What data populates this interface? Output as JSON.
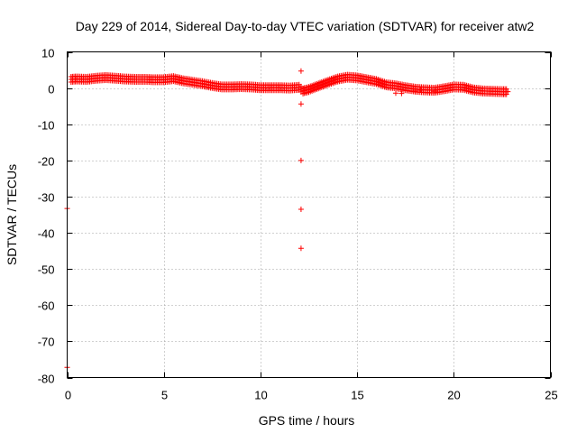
{
  "chart_data": {
    "type": "scatter",
    "title": "Day 229 of 2014, Sidereal Day-to-day VTEC variation (SDTVAR) for receiver atw2",
    "xlabel": "GPS time / hours",
    "ylabel": "SDTVAR / TECUs",
    "xlim": [
      0,
      25
    ],
    "ylim": [
      -80,
      10
    ],
    "x_ticks": [
      0,
      5,
      10,
      15,
      20,
      25
    ],
    "y_ticks": [
      10,
      0,
      -10,
      -20,
      -30,
      -40,
      -50,
      -60,
      -70,
      -80
    ],
    "grid": true,
    "marker": "+",
    "color": "#ff0000",
    "series": [
      {
        "name": "atw2",
        "band": [
          [
            0.2,
            2.4
          ],
          [
            0.5,
            2.5
          ],
          [
            1.0,
            2.4
          ],
          [
            1.5,
            2.7
          ],
          [
            2.0,
            2.9
          ],
          [
            2.5,
            2.7
          ],
          [
            3.0,
            2.5
          ],
          [
            3.5,
            2.4
          ],
          [
            4.0,
            2.4
          ],
          [
            4.5,
            2.3
          ],
          [
            5.0,
            2.3
          ],
          [
            5.5,
            2.6
          ],
          [
            6.0,
            2.0
          ],
          [
            6.5,
            1.6
          ],
          [
            7.0,
            1.2
          ],
          [
            7.5,
            0.7
          ],
          [
            8.0,
            0.3
          ],
          [
            8.5,
            0.3
          ],
          [
            9.0,
            0.4
          ],
          [
            9.5,
            0.3
          ],
          [
            10.0,
            0.1
          ],
          [
            10.5,
            0.1
          ],
          [
            11.0,
            0.1
          ],
          [
            11.5,
            0.0
          ],
          [
            12.0,
            0.2
          ],
          [
            12.2,
            -0.8
          ],
          [
            12.5,
            -0.4
          ],
          [
            13.0,
            0.6
          ],
          [
            13.5,
            1.6
          ],
          [
            14.0,
            2.5
          ],
          [
            14.5,
            3.0
          ],
          [
            15.0,
            2.8
          ],
          [
            15.5,
            2.3
          ],
          [
            16.0,
            1.8
          ],
          [
            16.5,
            0.9
          ],
          [
            17.0,
            0.6
          ],
          [
            17.5,
            0.1
          ],
          [
            18.0,
            -0.3
          ],
          [
            18.5,
            -0.5
          ],
          [
            19.0,
            -0.6
          ],
          [
            19.5,
            -0.2
          ],
          [
            20.0,
            0.3
          ],
          [
            20.5,
            0.2
          ],
          [
            21.0,
            -0.5
          ],
          [
            21.5,
            -0.8
          ],
          [
            22.0,
            -0.9
          ],
          [
            22.5,
            -1.0
          ],
          [
            22.8,
            -1.0
          ]
        ],
        "outliers": [
          [
            0.0,
            -33.3
          ],
          [
            0.0,
            -77.2
          ],
          [
            12.1,
            4.7
          ],
          [
            12.1,
            -4.4
          ],
          [
            12.1,
            -20.0
          ],
          [
            12.1,
            -33.5
          ],
          [
            12.1,
            -44.3
          ],
          [
            17.0,
            -1.4
          ],
          [
            17.3,
            -1.5
          ],
          [
            18.0,
            -0.8
          ],
          [
            18.3,
            -0.6
          ],
          [
            19.0,
            -0.9
          ]
        ]
      }
    ]
  }
}
